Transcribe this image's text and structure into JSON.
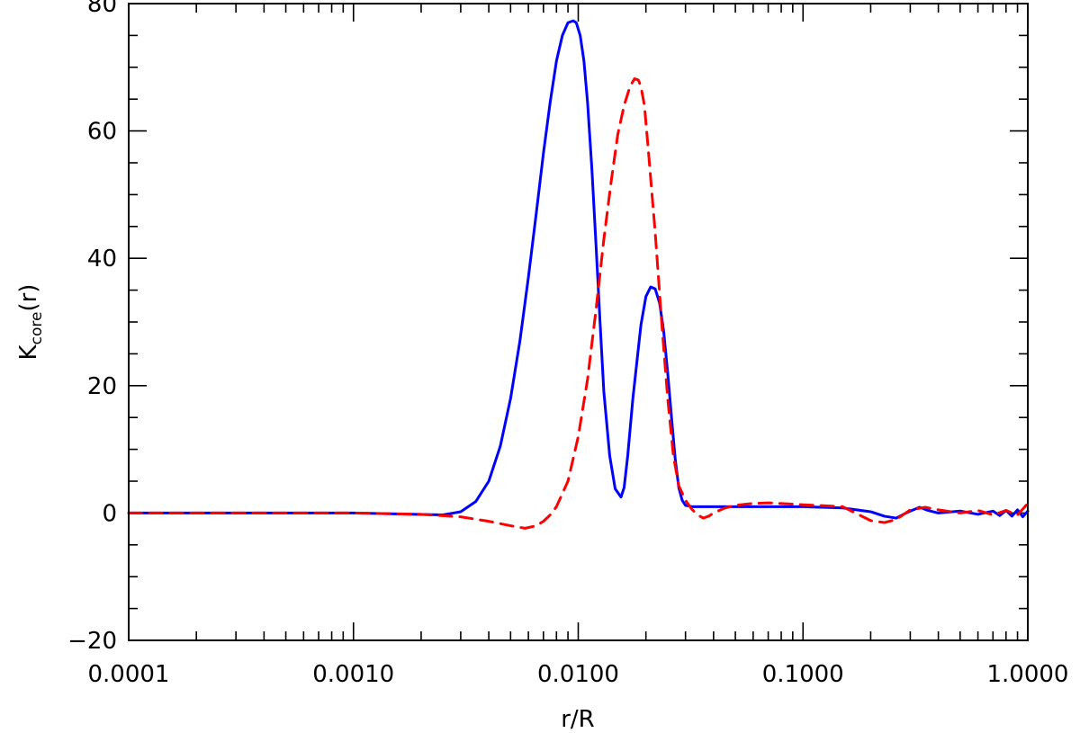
{
  "chart_data": {
    "type": "line",
    "title": "",
    "xlabel": "r/R",
    "ylabel": {
      "main": "K",
      "subscript": "core",
      "suffix": "(r)"
    },
    "xscale": "log",
    "xlim": [
      0.0001,
      1.0
    ],
    "ylim": [
      -20,
      80
    ],
    "xticks": [
      0.0001,
      0.001,
      0.01,
      0.1,
      1.0
    ],
    "xtick_labels": [
      "0.0001",
      "0.0010",
      "0.0100",
      "0.1000",
      "1.0000"
    ],
    "yticks": [
      -20,
      0,
      20,
      40,
      60,
      80
    ],
    "ytick_labels": [
      "−20",
      "0",
      "20",
      "40",
      "60",
      "80"
    ],
    "legend": "none",
    "grid": false,
    "series": [
      {
        "color": "#0000ff",
        "style": "solid",
        "x": [
          0.0001,
          0.001,
          0.0025,
          0.003,
          0.0035,
          0.004,
          0.0045,
          0.005,
          0.0055,
          0.006,
          0.0065,
          0.007,
          0.0075,
          0.008,
          0.0085,
          0.009,
          0.0095,
          0.0098,
          0.0102,
          0.0106,
          0.011,
          0.0115,
          0.012,
          0.0125,
          0.013,
          0.0138,
          0.0146,
          0.0155,
          0.016,
          0.0166,
          0.0175,
          0.019,
          0.02,
          0.021,
          0.022,
          0.023,
          0.024,
          0.025,
          0.026,
          0.027,
          0.028,
          0.029,
          0.03,
          0.032,
          0.034,
          0.036,
          0.04,
          0.05,
          0.07,
          0.1,
          0.15,
          0.2,
          0.23,
          0.26,
          0.28,
          0.3,
          0.33,
          0.36,
          0.4,
          0.5,
          0.6,
          0.7,
          0.75,
          0.8,
          0.85,
          0.9,
          0.95,
          1.0
        ],
        "y": [
          0,
          0,
          -0.3,
          0.2,
          1.8,
          5,
          10.5,
          18,
          27,
          37,
          47,
          56.5,
          64.5,
          71,
          75,
          77,
          77.3,
          77,
          75,
          71,
          64.5,
          54,
          42,
          30,
          19,
          9,
          3.8,
          2.5,
          4,
          9,
          18,
          29.5,
          34,
          35.5,
          35.2,
          33,
          28.5,
          22,
          15,
          8.5,
          4,
          2,
          1.2,
          1,
          1,
          1,
          1,
          1,
          1,
          1,
          0.8,
          0.2,
          -0.5,
          -0.8,
          -0.2,
          0.3,
          0.9,
          0.4,
          0,
          0.3,
          -0.2,
          0.3,
          -0.4,
          0.4,
          -0.5,
          0.5,
          -0.6,
          0.3
        ]
      },
      {
        "color": "#ff0000",
        "style": "dashed",
        "x": [
          0.0001,
          0.001,
          0.002,
          0.003,
          0.004,
          0.005,
          0.0058,
          0.0065,
          0.007,
          0.0075,
          0.008,
          0.009,
          0.01,
          0.011,
          0.012,
          0.013,
          0.014,
          0.015,
          0.016,
          0.017,
          0.0178,
          0.0185,
          0.019,
          0.0197,
          0.0205,
          0.022,
          0.0235,
          0.025,
          0.0265,
          0.028,
          0.03,
          0.032,
          0.034,
          0.036,
          0.038,
          0.04,
          0.045,
          0.05,
          0.06,
          0.07,
          0.1,
          0.15,
          0.2,
          0.23,
          0.26,
          0.3,
          0.35,
          0.4,
          0.5,
          0.6,
          0.7,
          0.8,
          0.9,
          1.0
        ],
        "y": [
          0,
          0,
          -0.2,
          -0.6,
          -1.3,
          -2,
          -2.4,
          -2,
          -1.3,
          -0.3,
          1,
          5,
          12,
          21,
          32,
          43,
          52,
          59.5,
          64,
          67,
          68.2,
          68,
          67,
          64,
          57,
          44,
          30,
          18,
          9,
          4.3,
          2,
          0.6,
          -0.3,
          -0.8,
          -0.5,
          0,
          0.8,
          1.2,
          1.5,
          1.6,
          1.3,
          1,
          -1.2,
          -1.5,
          -1,
          0.5,
          0.9,
          0.5,
          0,
          0.4,
          -0.3,
          0.4,
          -0.3,
          1.5
        ]
      }
    ]
  }
}
